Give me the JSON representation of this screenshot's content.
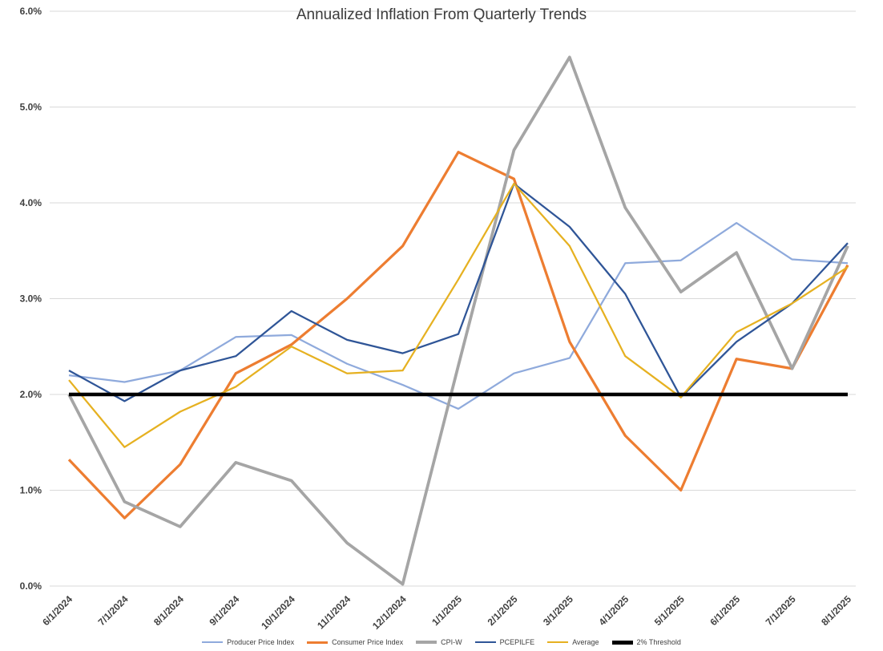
{
  "title": "Annualized Inflation From Quarterly Trends",
  "chart_data": {
    "type": "line",
    "title": "Annualized Inflation From Quarterly Trends",
    "xlabel": "",
    "ylabel": "",
    "ylim": [
      0,
      6
    ],
    "grid": true,
    "legend_position": "bottom",
    "yticks": [
      0,
      1,
      2,
      3,
      4,
      5,
      6
    ],
    "ytick_labels": [
      "0.0%",
      "1.0%",
      "2.0%",
      "3.0%",
      "4.0%",
      "5.0%",
      "6.0%"
    ],
    "x": [
      "6/1/2024",
      "7/1/2024",
      "8/1/2024",
      "9/1/2024",
      "10/1/2024",
      "11/1/2024",
      "12/1/2024",
      "1/1/2025",
      "2/1/2025",
      "3/1/2025",
      "4/1/2025",
      "5/1/2025",
      "6/1/2025",
      "7/1/2025",
      "8/1/2025"
    ],
    "series": [
      {
        "name": "Producer Price Index",
        "color": "#8faadc",
        "stroke_width": 2.25,
        "values": [
          2.2,
          2.13,
          2.25,
          2.6,
          2.62,
          2.32,
          2.1,
          1.85,
          2.22,
          2.38,
          3.37,
          3.4,
          3.79,
          3.41,
          3.37
        ]
      },
      {
        "name": "Consumer Price Index",
        "color": "#ed7d31",
        "stroke_width": 3.25,
        "values": [
          1.32,
          0.71,
          1.27,
          2.22,
          2.52,
          3.0,
          3.55,
          4.53,
          4.25,
          2.55,
          1.57,
          1.0,
          2.37,
          2.27,
          3.35
        ]
      },
      {
        "name": "CPI-W",
        "color": "#a5a5a5",
        "stroke_width": 3.75,
        "values": [
          2.0,
          0.88,
          0.62,
          1.29,
          1.1,
          0.45,
          0.02,
          2.3,
          4.55,
          5.52,
          3.95,
          3.07,
          3.48,
          2.27,
          3.55
        ]
      },
      {
        "name": "PCEPILFE",
        "color": "#2f5597",
        "stroke_width": 2.25,
        "values": [
          2.25,
          1.93,
          2.25,
          2.4,
          2.87,
          2.57,
          2.43,
          2.63,
          4.2,
          3.75,
          3.05,
          1.97,
          2.55,
          2.95,
          3.58
        ]
      },
      {
        "name": "Average",
        "color": "#e6b121",
        "stroke_width": 2.25,
        "values": [
          2.15,
          1.45,
          1.82,
          2.08,
          2.5,
          2.22,
          2.25,
          3.2,
          4.2,
          3.55,
          2.4,
          1.97,
          2.65,
          2.95,
          3.33
        ]
      },
      {
        "name": "2% Threshold",
        "color": "#000000",
        "stroke_width": 4.5,
        "values": [
          2.0,
          2.0,
          2.0,
          2.0,
          2.0,
          2.0,
          2.0,
          2.0,
          2.0,
          2.0,
          2.0,
          2.0,
          2.0,
          2.0,
          2.0
        ]
      }
    ]
  }
}
